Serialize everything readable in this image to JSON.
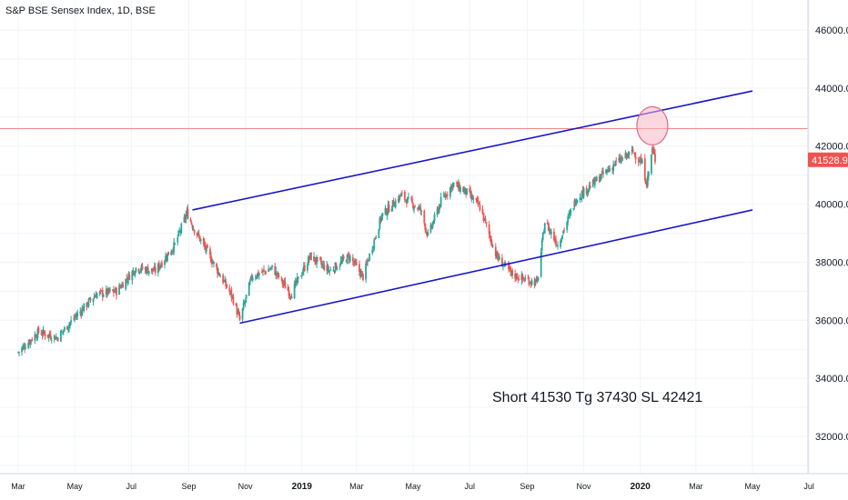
{
  "header": {
    "title": "S&P BSE Sensex Index, 1D, BSE"
  },
  "colors": {
    "up": "#26a69a",
    "down": "#ef5350",
    "channel": "#1717c7",
    "price_line": "#ef5350",
    "highlight": "#f8b6c4",
    "grid": "#f0f3fa",
    "axis_text": "#131722"
  },
  "chart_data": {
    "type": "candlestick",
    "symbol": "S&P BSE Sensex Index",
    "interval": "1D",
    "exchange": "BSE",
    "x_ticks": [
      "Mar",
      "May",
      "Jul",
      "Sep",
      "Nov",
      "2019",
      "Mar",
      "May",
      "Jul",
      "Sep",
      "Nov",
      "2020",
      "Mar",
      "May",
      "Jul"
    ],
    "y_ticks": [
      "46000.0",
      "44000.0",
      "42000.0",
      "40000.0",
      "38000.0",
      "36000.0",
      "34000.0",
      "32000.0"
    ],
    "ylim": [
      30400,
      47200
    ],
    "last_price_label": "41528.9",
    "last_price": 41528.9,
    "channel_upper": {
      "start": {
        "date": "2018-09-05",
        "value": 39800
      },
      "end": {
        "date": "2020-05-01",
        "value": 43900
      }
    },
    "channel_lower": {
      "start": {
        "date": "2018-10-26",
        "value": 35900
      },
      "end": {
        "date": "2020-05-01",
        "value": 39800
      }
    },
    "highlight_zone": {
      "date": "2020-01-14",
      "value": 42700
    },
    "price_line_value": 42600,
    "annotation": "Short 41530 Tg 37430 SL 42421",
    "series_shape": [
      [
        "2018-03-01",
        34900
      ],
      [
        "2018-03-23",
        35600
      ],
      [
        "2018-04-12",
        35400
      ],
      [
        "2018-05-01",
        36100
      ],
      [
        "2018-05-24",
        36900
      ],
      [
        "2018-06-15",
        37000
      ],
      [
        "2018-07-06",
        37800
      ],
      [
        "2018-07-27",
        37700
      ],
      [
        "2018-08-17",
        38600
      ],
      [
        "2018-08-30",
        39700
      ],
      [
        "2018-09-06",
        39200
      ],
      [
        "2018-09-27",
        38000
      ],
      [
        "2018-10-18",
        36800
      ],
      [
        "2018-10-26",
        36000
      ],
      [
        "2018-11-08",
        37500
      ],
      [
        "2018-11-30",
        37800
      ],
      [
        "2018-12-20",
        36900
      ],
      [
        "2019-01-10",
        38200
      ],
      [
        "2019-01-31",
        37700
      ],
      [
        "2019-02-21",
        38200
      ],
      [
        "2019-03-08",
        37500
      ],
      [
        "2019-03-28",
        39600
      ],
      [
        "2019-04-18",
        40300
      ],
      [
        "2019-05-09",
        39800
      ],
      [
        "2019-05-17",
        38900
      ],
      [
        "2019-05-31",
        40100
      ],
      [
        "2019-06-13",
        40700
      ],
      [
        "2019-06-28",
        40400
      ],
      [
        "2019-07-12",
        39900
      ],
      [
        "2019-07-30",
        38200
      ],
      [
        "2019-08-15",
        37600
      ],
      [
        "2019-08-29",
        37400
      ],
      [
        "2019-09-12",
        37300
      ],
      [
        "2019-09-20",
        39400
      ],
      [
        "2019-10-04",
        38600
      ],
      [
        "2019-10-24",
        40200
      ],
      [
        "2019-11-14",
        40800
      ],
      [
        "2019-12-05",
        41400
      ],
      [
        "2019-12-24",
        41800
      ],
      [
        "2020-01-03",
        41400
      ],
      [
        "2020-01-08",
        40700
      ],
      [
        "2020-01-14",
        41900
      ],
      [
        "2020-01-17",
        41530
      ]
    ]
  }
}
